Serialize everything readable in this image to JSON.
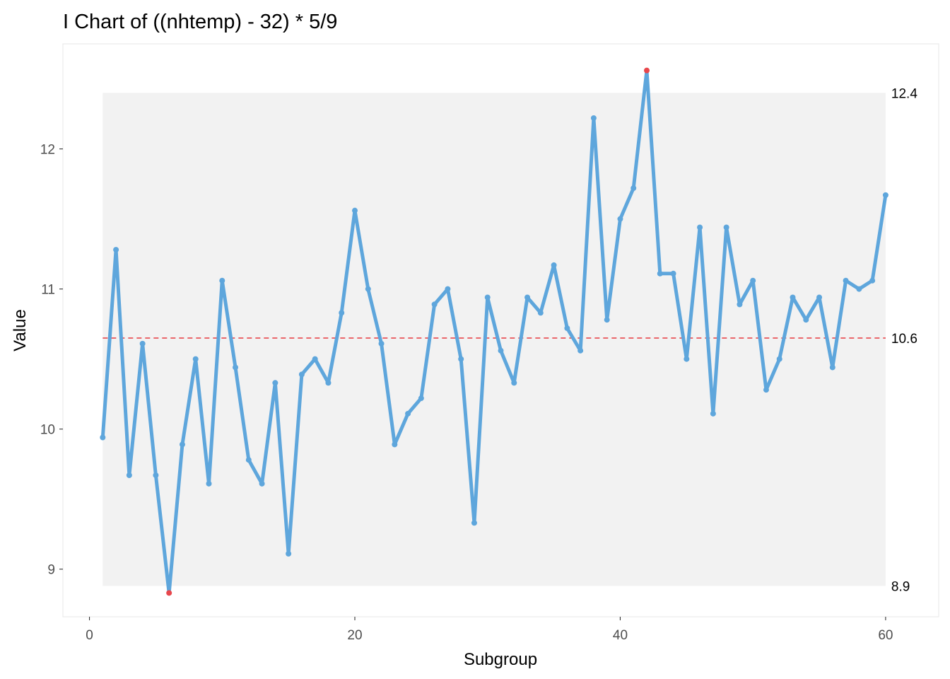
{
  "chart_data": {
    "type": "line",
    "title": "I Chart of ((nhtemp) - 32) * 5/9",
    "xlabel": "Subgroup",
    "ylabel": "Value",
    "xlim": [
      -2,
      64
    ],
    "ylim": [
      8.66,
      12.75
    ],
    "x_ticks": [
      {
        "value": 0,
        "label": "0"
      },
      {
        "value": 20,
        "label": "20"
      },
      {
        "value": 40,
        "label": "40"
      },
      {
        "value": 60,
        "label": "60"
      }
    ],
    "y_ticks": [
      {
        "value": 9,
        "label": "9"
      },
      {
        "value": 10,
        "label": "10"
      },
      {
        "value": 11,
        "label": "11"
      },
      {
        "value": 12,
        "label": "12"
      }
    ],
    "grid": false,
    "center_line": {
      "value": 10.65,
      "label": "10.6",
      "color": "#e8474c"
    },
    "ucl": {
      "value": 12.4,
      "label": "12.4"
    },
    "lcl": {
      "value": 8.88,
      "label": "8.9"
    },
    "limit_band_color": "#f2f2f2",
    "line_color": "#5ea6dc",
    "out_of_control_color": "#e8474c",
    "series": [
      {
        "x": [
          1,
          2,
          3,
          4,
          5,
          6,
          7,
          8,
          9,
          10,
          11,
          12,
          13,
          14,
          15,
          16,
          17,
          18,
          19,
          20,
          21,
          22,
          23,
          24,
          25,
          26,
          27,
          28,
          29,
          30,
          31,
          32,
          33,
          34,
          35,
          36,
          37,
          38,
          39,
          40,
          41,
          42,
          43,
          44,
          45,
          46,
          47,
          48,
          49,
          50,
          51,
          52,
          53,
          54,
          55,
          56,
          57,
          58,
          59,
          60
        ],
        "values": [
          9.94,
          11.28,
          9.67,
          10.61,
          9.67,
          8.83,
          9.89,
          10.5,
          9.61,
          11.06,
          10.44,
          9.78,
          9.61,
          10.33,
          9.11,
          10.39,
          10.5,
          10.33,
          10.83,
          11.56,
          11.0,
          10.61,
          9.89,
          10.11,
          10.22,
          10.89,
          11.0,
          10.5,
          9.33,
          10.94,
          10.56,
          10.33,
          10.94,
          10.83,
          11.17,
          10.72,
          10.56,
          12.22,
          10.78,
          11.5,
          11.72,
          12.56,
          11.11,
          11.11,
          10.5,
          11.44,
          10.11,
          11.44,
          10.89,
          11.06,
          10.28,
          10.5,
          10.94,
          10.78,
          10.94,
          10.44,
          11.06,
          11.0,
          11.06,
          11.67
        ]
      }
    ]
  }
}
